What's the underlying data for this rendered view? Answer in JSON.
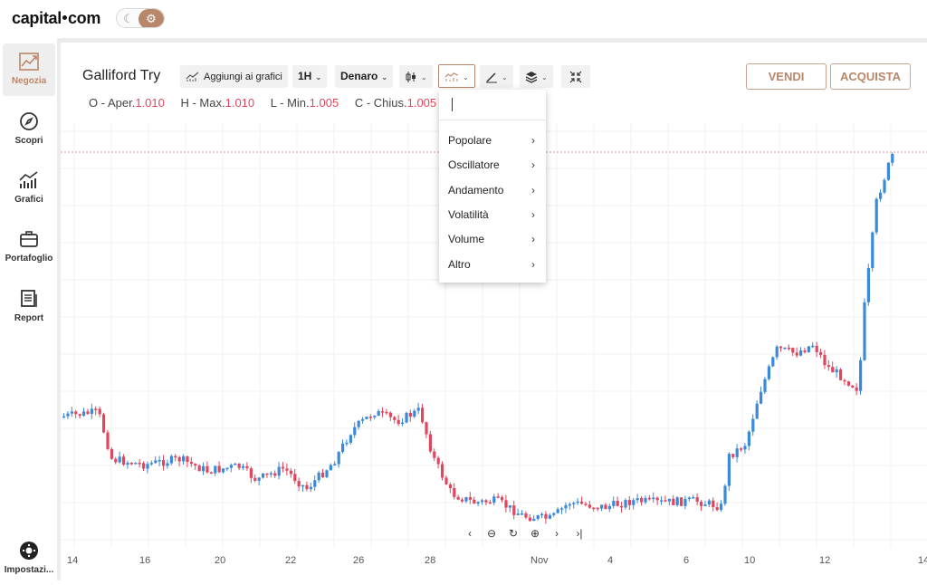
{
  "brand": {
    "logo_left": "capital",
    "logo_right": "com"
  },
  "theme_toggle": {
    "moon": "moon-icon",
    "gear": "gear-icon"
  },
  "sidebar": {
    "items": [
      {
        "label": "Negozia",
        "icon": "trend-icon",
        "active": true
      },
      {
        "label": "Scopri",
        "icon": "compass-icon"
      },
      {
        "label": "Grafici",
        "icon": "bar-chart-icon"
      },
      {
        "label": "Portafoglio",
        "icon": "briefcase-icon"
      },
      {
        "label": "Report",
        "icon": "document-icon"
      },
      {
        "label": "Impostazi...",
        "icon": "gear-icon"
      }
    ]
  },
  "header": {
    "instrument": "Galliford Try",
    "add_to_charts": "Aggiungi ai grafici",
    "timeframe": "1H",
    "price_type": "Denaro",
    "sell": "VENDI",
    "buy": "ACQUISTA"
  },
  "ohlc": {
    "open_label": "O - Aper.",
    "open": "1.010",
    "high_label": "H - Max.",
    "high": "1.010",
    "low_label": "L - Min.",
    "low": "1.005",
    "close_label": "C - Chius.",
    "close": "1.005"
  },
  "indicator_menu": {
    "items": [
      "Popolare",
      "Oscillatore",
      "Andamento",
      "Volatilità",
      "Volume",
      "Altro"
    ]
  },
  "chart_data": {
    "type": "candlestick",
    "x_ticks": [
      "14",
      "16",
      "20",
      "22",
      "26",
      "28",
      "Nov",
      "4",
      "6",
      "10",
      "12",
      "14"
    ],
    "colors": {
      "up": "#3b8ad9",
      "down": "#e0465e"
    },
    "price_line_color": "#e0465e",
    "grid": true
  }
}
